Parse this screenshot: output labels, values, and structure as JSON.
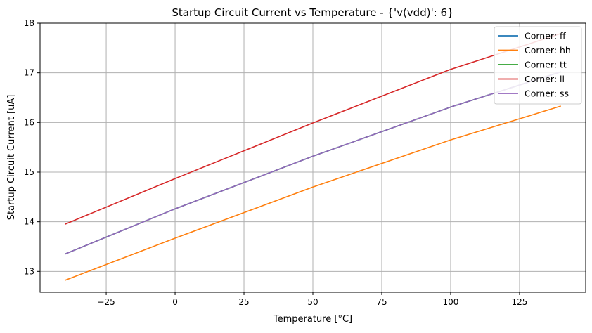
{
  "chart_data": {
    "type": "line",
    "title": "Startup Circuit Current vs Temperature - {'v(vdd)': 6}",
    "xlabel": "Temperature [°C]",
    "ylabel": "Startup Circuit Current [uA]",
    "xlim": [
      -49,
      149
    ],
    "ylim": [
      12.58,
      18.0
    ],
    "xticks": [
      -25,
      0,
      25,
      50,
      75,
      100,
      125
    ],
    "yticks": [
      13,
      14,
      15,
      16,
      17,
      18
    ],
    "grid": true,
    "legend_position": "top-right",
    "x": [
      -40,
      0,
      50,
      100,
      140
    ],
    "series": [
      {
        "name": "Corner: ff",
        "color": "#1f77b4",
        "values": [
          13.35,
          14.26,
          15.32,
          16.31,
          17.02
        ]
      },
      {
        "name": "Corner: hh",
        "color": "#ff7f0e",
        "values": [
          12.82,
          13.67,
          14.7,
          15.65,
          16.33
        ]
      },
      {
        "name": "Corner: tt",
        "color": "#2ca02c",
        "values": [
          13.35,
          14.26,
          15.32,
          16.31,
          17.02
        ]
      },
      {
        "name": "Corner: ll",
        "color": "#d62728",
        "values": [
          13.95,
          14.87,
          15.99,
          17.07,
          17.79
        ]
      },
      {
        "name": "Corner: ss",
        "color": "#9467bd",
        "values": [
          13.35,
          14.26,
          15.32,
          16.31,
          17.02
        ]
      }
    ]
  }
}
